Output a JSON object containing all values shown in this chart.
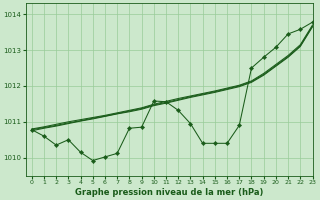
{
  "bg_color": "#cce8cc",
  "grid_color": "#99cc99",
  "line_color": "#1a5c1a",
  "title": "Graphe pression niveau de la mer (hPa)",
  "xlim": [
    -0.5,
    23
  ],
  "ylim": [
    1009.5,
    1014.3
  ],
  "yticks": [
    1010,
    1011,
    1012,
    1013,
    1014
  ],
  "xticks": [
    0,
    1,
    2,
    3,
    4,
    5,
    6,
    7,
    8,
    9,
    10,
    11,
    12,
    13,
    14,
    15,
    16,
    17,
    18,
    19,
    20,
    21,
    22,
    23
  ],
  "hours": [
    0,
    1,
    2,
    3,
    4,
    5,
    6,
    7,
    8,
    9,
    10,
    11,
    12,
    13,
    14,
    15,
    16,
    17,
    18,
    19,
    20,
    21,
    22,
    23
  ],
  "line1_y": [
    1010.75,
    1010.82,
    1010.88,
    1010.95,
    1011.02,
    1011.08,
    1011.15,
    1011.22,
    1011.28,
    1011.35,
    1011.45,
    1011.52,
    1011.6,
    1011.68,
    1011.75,
    1011.82,
    1011.9,
    1011.98,
    1012.1,
    1012.3,
    1012.55,
    1012.8,
    1013.1,
    1013.65
  ],
  "line2_y": [
    1010.78,
    1010.84,
    1010.9,
    1010.97,
    1011.03,
    1011.1,
    1011.16,
    1011.23,
    1011.3,
    1011.37,
    1011.47,
    1011.54,
    1011.62,
    1011.7,
    1011.77,
    1011.84,
    1011.92,
    1012.0,
    1012.12,
    1012.32,
    1012.57,
    1012.82,
    1013.12,
    1013.67
  ],
  "line3_y": [
    1010.8,
    1010.86,
    1010.93,
    1011.0,
    1011.06,
    1011.12,
    1011.18,
    1011.25,
    1011.32,
    1011.39,
    1011.49,
    1011.57,
    1011.65,
    1011.72,
    1011.79,
    1011.86,
    1011.94,
    1012.02,
    1012.14,
    1012.35,
    1012.6,
    1012.85,
    1013.15,
    1013.7
  ],
  "obs_y": [
    1010.78,
    1010.6,
    1010.35,
    1010.5,
    1010.15,
    1009.92,
    1010.02,
    1010.12,
    1010.82,
    1010.85,
    1011.58,
    1011.56,
    1011.32,
    1010.95,
    1010.4,
    1010.4,
    1010.4,
    1010.9,
    1012.5,
    1012.8,
    1013.08,
    1013.45,
    1013.58,
    1013.78
  ]
}
